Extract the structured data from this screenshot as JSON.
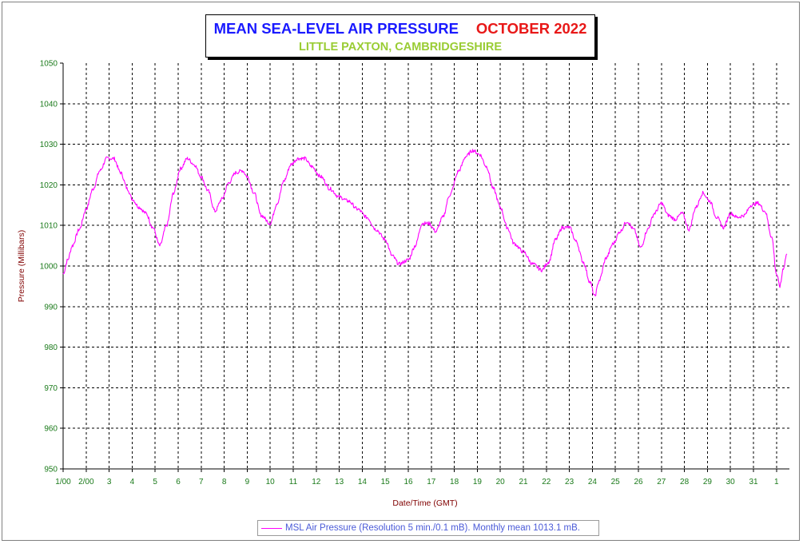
{
  "title": {
    "main": "MEAN SEA-LEVEL AIR PRESSURE",
    "month": "OCTOBER 2022",
    "subtitle": "LITTLE PAXTON, CAMBRIDGESHIRE"
  },
  "axes": {
    "ylabel": "Pressure (Millibars)",
    "xlabel": "Date/Time (GMT)"
  },
  "legend": {
    "label": "MSL Air Pressure (Resolution 5 min./0.1 mB). Monthly mean 1013.1 mB."
  },
  "colors": {
    "series": "#ff00ff",
    "grid": "#000000",
    "tick_labels": "#1a7a1a",
    "axis_titles": "#800000",
    "title_main": "#1a1aff",
    "title_month": "#e81818",
    "subtitle": "#99cc33",
    "legend_text": "#4a5ad8"
  },
  "chart_data": {
    "type": "line",
    "title": "MEAN SEA-LEVEL AIR PRESSURE   OCTOBER 2022",
    "subtitle": "LITTLE PAXTON, CAMBRIDGESHIRE",
    "xlabel": "Date/Time (GMT)",
    "ylabel": "Pressure (Millibars)",
    "ylim": [
      950,
      1050
    ],
    "y_ticks": [
      950,
      960,
      970,
      980,
      990,
      1000,
      1010,
      1020,
      1030,
      1040,
      1050
    ],
    "xlim_days": [
      1,
      32.6
    ],
    "x_ticks": [
      {
        "day": 1,
        "label": "1/00"
      },
      {
        "day": 2,
        "label": "2/00"
      },
      {
        "day": 3,
        "label": "3"
      },
      {
        "day": 4,
        "label": "4"
      },
      {
        "day": 5,
        "label": "5"
      },
      {
        "day": 6,
        "label": "6"
      },
      {
        "day": 7,
        "label": "7"
      },
      {
        "day": 8,
        "label": "8"
      },
      {
        "day": 9,
        "label": "9"
      },
      {
        "day": 10,
        "label": "10"
      },
      {
        "day": 11,
        "label": "11"
      },
      {
        "day": 12,
        "label": "12"
      },
      {
        "day": 13,
        "label": "13"
      },
      {
        "day": 14,
        "label": "14"
      },
      {
        "day": 15,
        "label": "15"
      },
      {
        "day": 16,
        "label": "16"
      },
      {
        "day": 17,
        "label": "17"
      },
      {
        "day": 18,
        "label": "18"
      },
      {
        "day": 19,
        "label": "19"
      },
      {
        "day": 20,
        "label": "20"
      },
      {
        "day": 21,
        "label": "21"
      },
      {
        "day": 22,
        "label": "22"
      },
      {
        "day": 23,
        "label": "23"
      },
      {
        "day": 24,
        "label": "24"
      },
      {
        "day": 25,
        "label": "25"
      },
      {
        "day": 26,
        "label": "26"
      },
      {
        "day": 27,
        "label": "27"
      },
      {
        "day": 28,
        "label": "28"
      },
      {
        "day": 29,
        "label": "29"
      },
      {
        "day": 30,
        "label": "30"
      },
      {
        "day": 31,
        "label": "31"
      },
      {
        "day": 32,
        "label": "1"
      }
    ],
    "grid": true,
    "legend_position": "bottom-center",
    "series": [
      {
        "name": "MSL Air Pressure (Resolution 5 min./0.1 mB). Monthly mean 1013.1 mB.",
        "points": [
          [
            1.0,
            998.0
          ],
          [
            1.2,
            1001.5
          ],
          [
            1.4,
            1005.0
          ],
          [
            1.7,
            1009.0
          ],
          [
            2.0,
            1014.0
          ],
          [
            2.3,
            1019.0
          ],
          [
            2.6,
            1023.5
          ],
          [
            2.9,
            1026.5
          ],
          [
            3.2,
            1026.5
          ],
          [
            3.5,
            1023.0
          ],
          [
            3.8,
            1019.0
          ],
          [
            4.0,
            1016.5
          ],
          [
            4.3,
            1014.5
          ],
          [
            4.6,
            1013.0
          ],
          [
            4.9,
            1009.5
          ],
          [
            5.2,
            1005.0
          ],
          [
            5.5,
            1010.0
          ],
          [
            5.8,
            1018.0
          ],
          [
            6.1,
            1024.0
          ],
          [
            6.4,
            1026.5
          ],
          [
            6.7,
            1025.0
          ],
          [
            7.0,
            1022.0
          ],
          [
            7.3,
            1018.5
          ],
          [
            7.6,
            1013.5
          ],
          [
            7.9,
            1016.5
          ],
          [
            8.2,
            1020.5
          ],
          [
            8.5,
            1023.0
          ],
          [
            8.8,
            1023.5
          ],
          [
            9.0,
            1022.0
          ],
          [
            9.3,
            1018.0
          ],
          [
            9.6,
            1012.5
          ],
          [
            10.0,
            1010.5
          ],
          [
            10.3,
            1015.5
          ],
          [
            10.6,
            1021.0
          ],
          [
            10.9,
            1025.0
          ],
          [
            11.2,
            1026.5
          ],
          [
            11.5,
            1026.5
          ],
          [
            11.8,
            1024.5
          ],
          [
            12.2,
            1022.0
          ],
          [
            12.6,
            1019.0
          ],
          [
            13.0,
            1017.0
          ],
          [
            13.4,
            1016.0
          ],
          [
            13.8,
            1014.0
          ],
          [
            14.2,
            1012.0
          ],
          [
            14.6,
            1009.0
          ],
          [
            15.0,
            1006.5
          ],
          [
            15.3,
            1002.5
          ],
          [
            15.6,
            1000.5
          ],
          [
            16.0,
            1001.5
          ],
          [
            16.3,
            1005.0
          ],
          [
            16.6,
            1010.5
          ],
          [
            16.9,
            1010.5
          ],
          [
            17.2,
            1008.5
          ],
          [
            17.5,
            1012.0
          ],
          [
            17.8,
            1017.5
          ],
          [
            18.2,
            1023.5
          ],
          [
            18.5,
            1027.0
          ],
          [
            18.8,
            1028.5
          ],
          [
            19.1,
            1027.5
          ],
          [
            19.4,
            1024.5
          ],
          [
            19.7,
            1019.0
          ],
          [
            20.0,
            1014.5
          ],
          [
            20.3,
            1009.5
          ],
          [
            20.6,
            1005.5
          ],
          [
            21.0,
            1003.5
          ],
          [
            21.4,
            1000.5
          ],
          [
            21.8,
            999.0
          ],
          [
            22.1,
            1001.0
          ],
          [
            22.4,
            1006.5
          ],
          [
            22.7,
            1009.5
          ],
          [
            23.0,
            1009.5
          ],
          [
            23.3,
            1006.0
          ],
          [
            23.6,
            1001.0
          ],
          [
            23.9,
            996.0
          ],
          [
            24.1,
            992.5
          ],
          [
            24.3,
            996.5
          ],
          [
            24.6,
            1002.0
          ],
          [
            24.9,
            1005.5
          ],
          [
            25.2,
            1008.5
          ],
          [
            25.5,
            1011.0
          ],
          [
            25.8,
            1009.0
          ],
          [
            26.1,
            1004.5
          ],
          [
            26.4,
            1009.0
          ],
          [
            26.7,
            1013.0
          ],
          [
            27.0,
            1015.5
          ],
          [
            27.3,
            1012.5
          ],
          [
            27.6,
            1011.5
          ],
          [
            27.9,
            1013.0
          ],
          [
            28.2,
            1009.0
          ],
          [
            28.5,
            1014.5
          ],
          [
            28.8,
            1018.0
          ],
          [
            29.1,
            1016.0
          ],
          [
            29.4,
            1012.0
          ],
          [
            29.7,
            1009.5
          ],
          [
            30.0,
            1013.0
          ],
          [
            30.3,
            1012.0
          ],
          [
            30.6,
            1012.5
          ],
          [
            30.9,
            1015.0
          ],
          [
            31.2,
            1015.5
          ],
          [
            31.5,
            1013.5
          ],
          [
            31.8,
            1007.0
          ],
          [
            32.0,
            998.0
          ],
          [
            32.15,
            995.0
          ],
          [
            32.3,
            999.5
          ],
          [
            32.45,
            1003.0
          ]
        ]
      }
    ]
  }
}
